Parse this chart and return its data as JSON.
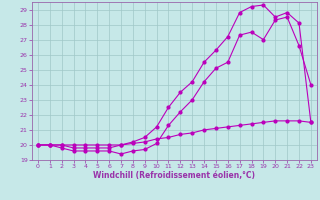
{
  "xlabel": "Windchill (Refroidissement éolien,°C)",
  "background_color": "#c6e8e8",
  "grid_color": "#a0c8c8",
  "line_color": "#bb00bb",
  "spine_color": "#9966aa",
  "tick_color": "#9933aa",
  "xlim": [
    -0.5,
    23.5
  ],
  "ylim": [
    19,
    29.5
  ],
  "xticks": [
    0,
    1,
    2,
    3,
    4,
    5,
    6,
    7,
    8,
    9,
    10,
    11,
    12,
    13,
    14,
    15,
    16,
    17,
    18,
    19,
    20,
    21,
    22,
    23
  ],
  "yticks": [
    19,
    20,
    21,
    22,
    23,
    24,
    25,
    26,
    27,
    28,
    29
  ],
  "curve1_x": [
    0,
    1,
    2,
    3,
    4,
    5,
    6,
    7,
    8,
    9,
    10,
    11,
    12,
    13,
    14,
    15,
    16,
    17,
    18,
    19,
    20,
    21,
    22,
    23
  ],
  "curve1_y": [
    20.0,
    20.0,
    19.8,
    19.6,
    19.6,
    19.6,
    19.6,
    19.4,
    19.6,
    19.7,
    20.1,
    21.3,
    22.2,
    23.0,
    24.2,
    25.1,
    25.5,
    27.3,
    27.5,
    27.0,
    28.3,
    28.5,
    26.6,
    24.0
  ],
  "curve2_x": [
    0,
    1,
    2,
    3,
    4,
    5,
    6,
    7,
    8,
    9,
    10,
    11,
    12,
    13,
    14,
    15,
    16,
    17,
    18,
    19,
    20,
    21,
    22,
    23
  ],
  "curve2_y": [
    20.0,
    20.0,
    20.0,
    19.8,
    19.8,
    19.8,
    19.8,
    20.0,
    20.2,
    20.5,
    21.2,
    22.5,
    23.5,
    24.2,
    25.5,
    26.3,
    27.2,
    28.8,
    29.2,
    29.3,
    28.5,
    28.8,
    28.1,
    21.5
  ],
  "curve3_x": [
    0,
    1,
    2,
    3,
    4,
    5,
    6,
    7,
    8,
    9,
    10,
    11,
    12,
    13,
    14,
    15,
    16,
    17,
    18,
    19,
    20,
    21,
    22,
    23
  ],
  "curve3_y": [
    20.0,
    20.0,
    20.0,
    20.0,
    20.0,
    20.0,
    20.0,
    20.0,
    20.1,
    20.2,
    20.4,
    20.5,
    20.7,
    20.8,
    21.0,
    21.1,
    21.2,
    21.3,
    21.4,
    21.5,
    21.6,
    21.6,
    21.6,
    21.5
  ],
  "tick_fontsize": 4.5,
  "xlabel_fontsize": 5.5,
  "marker_size": 2.0,
  "line_width": 0.8
}
